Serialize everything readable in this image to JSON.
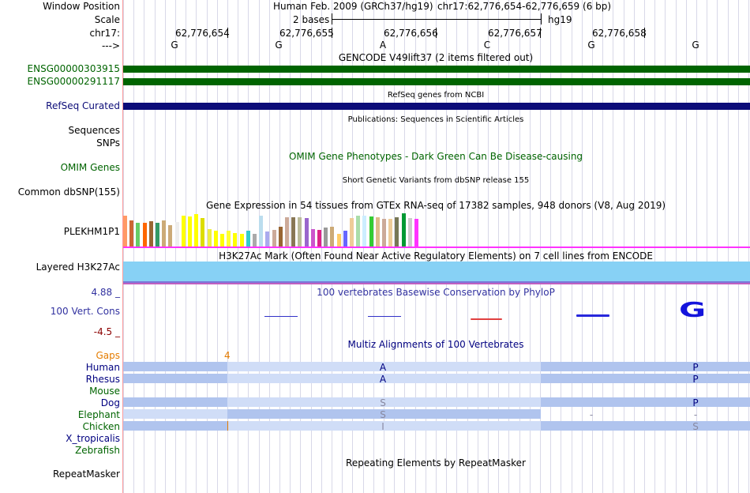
{
  "labels": {
    "window_position": "Window Position",
    "scale": "Scale",
    "chrom": "chr17:",
    "strand": "--->",
    "gencode_1": "ENSG00000303915",
    "gencode_2": "ENSG00000291117",
    "refseq": "RefSeq Curated",
    "sequences": "Sequences",
    "snps": "SNPs",
    "omim": "OMIM Genes",
    "dbsnp": "Common dbSNP(155)",
    "gtex": "PLEKHM1P1",
    "h3k27ac": "Layered H3K27Ac",
    "cons_max": "4.88 _",
    "cons": "100 Vert. Cons",
    "cons_min": "-4.5 _",
    "gaps": "Gaps",
    "species": [
      "Human",
      "Rhesus",
      "Mouse",
      "Dog",
      "Elephant",
      "Chicken",
      "X_tropicalis",
      "Zebrafish"
    ],
    "repeatmasker": "RepeatMasker"
  },
  "header": {
    "assembly": "Human Feb. 2009 (GRCh37/hg19)",
    "position": "chr17:62,776,654-62,776,659 (6 bp)",
    "scale_text": "2 bases",
    "db": "hg19",
    "coords": [
      "62,776,654",
      "62,776,655",
      "62,776,656",
      "62,776,657",
      "62,776,658"
    ],
    "bases": [
      "G",
      "G",
      "A",
      "C",
      "G",
      "G"
    ]
  },
  "titles": {
    "gencode": "GENCODE V49lift37 (2 items filtered out)",
    "refseq": "RefSeq genes from NCBI",
    "publications": "Publications: Sequences in Scientific Articles",
    "omim": "OMIM Gene Phenotypes - Dark Green Can Be Disease-causing",
    "dbsnp": "Short Genetic Variants from dbSNP release 155",
    "gtex": "Gene Expression in 54 tissues from GTEx RNA-seq of 17382 samples, 948 donors (V8, Aug 2019)",
    "h3k27ac": "H3K27Ac Mark (Often Found Near Active Regulatory Elements) on 7 cell lines from ENCODE",
    "phylop": "100 vertebrates Basewise Conservation by PhyloP",
    "multiz": "Multiz Alignments of 100 Vertebrates",
    "repeatmasker": "Repeating Elements by RepeatMasker"
  },
  "gaps_value": "4",
  "alignment": {
    "human": [
      "A",
      "P"
    ],
    "rhesus": [
      "A",
      "P"
    ],
    "dog": [
      "S",
      "P"
    ],
    "elephant": [
      "S",
      "-",
      "-"
    ],
    "chicken": [
      "I",
      "S"
    ]
  },
  "conservation_letter": "G",
  "gtex_colors": [
    "#ff9966",
    "#cc6633",
    "#66cc66",
    "#ff6600",
    "#996633",
    "#339966",
    "#ccaa77",
    "#ccaa77",
    "#eeeeee",
    "#ffff00",
    "#ffff00",
    "#ffff00",
    "#dddd00",
    "#eeee44",
    "#ffff00",
    "#ffff00",
    "#ffff33",
    "#ffff00",
    "#ffff00",
    "#33cccc",
    "#aaaaaa",
    "#bbddee",
    "#aaaaee",
    "#ccaa99",
    "#996633",
    "#ccaa99",
    "#887755",
    "#bbbb99",
    "#9966cc",
    "#cc55cc",
    "#dd2288",
    "#999999",
    "#ccaa77",
    "#ffcc66",
    "#6666ff",
    "#eecc99",
    "#aaddaa",
    "#cceeff",
    "#33cc33",
    "#ddbb88",
    "#ccaa99",
    "#eecc99",
    "#777755",
    "#009933",
    "#cccccc",
    "#ff33ff"
  ],
  "gtex_values": [
    40,
    34,
    31,
    31,
    33,
    31,
    34,
    28,
    32,
    40,
    39,
    42,
    37,
    23,
    20,
    16,
    20,
    17,
    16,
    20,
    16,
    40,
    19,
    22,
    26,
    38,
    38,
    38,
    37,
    23,
    21,
    25,
    26,
    16,
    20,
    37,
    40,
    40,
    39,
    38,
    36,
    36,
    38,
    43,
    37,
    36
  ],
  "colors": {
    "gencode": "#006400",
    "refseq": "#0c0c78",
    "omim": "#006400",
    "label_blue": "#000080",
    "cons_blue": "#3232a0",
    "gaps": "#e47c00",
    "h3k27ac": "#87d1f5",
    "magenta": "#ff33ff",
    "align_dark": "#b0c4ee",
    "align_light": "#d0ddf7"
  }
}
